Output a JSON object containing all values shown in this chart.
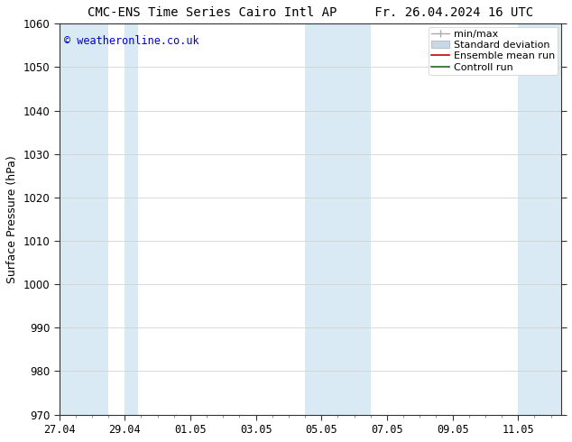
{
  "title_left": "CMC-ENS Time Series Cairo Intl AP",
  "title_right": "Fr. 26.04.2024 16 UTC",
  "ylabel": "Surface Pressure (hPa)",
  "watermark": "© weatheronline.co.uk",
  "watermark_color": "#0000cc",
  "ylim": [
    970,
    1060
  ],
  "yticks": [
    970,
    980,
    990,
    1000,
    1010,
    1020,
    1030,
    1040,
    1050,
    1060
  ],
  "xtick_labels": [
    "27.04",
    "29.04",
    "01.05",
    "03.05",
    "05.05",
    "07.05",
    "09.05",
    "11.05"
  ],
  "band_color": "#daeaf5",
  "background_color": "#ffffff",
  "legend_items": [
    {
      "label": "min/max",
      "color": "#aaaaaa",
      "type": "hbar"
    },
    {
      "label": "Standard deviation",
      "color": "#ccddee",
      "type": "box"
    },
    {
      "label": "Ensemble mean run",
      "color": "#ff0000",
      "type": "line"
    },
    {
      "label": "Controll run",
      "color": "#228822",
      "type": "line"
    }
  ],
  "title_fontsize": 10,
  "tick_fontsize": 8.5,
  "ylabel_fontsize": 9,
  "legend_fontsize": 8
}
